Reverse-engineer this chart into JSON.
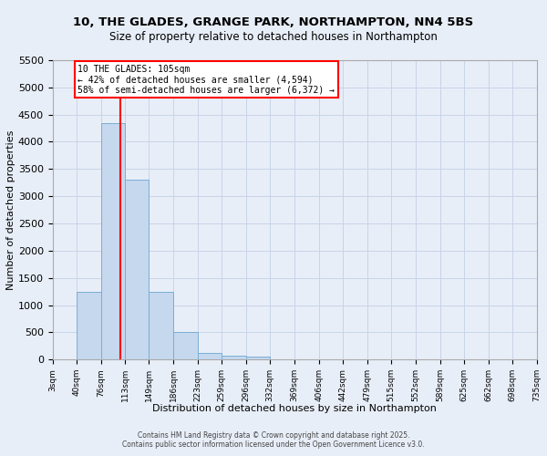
{
  "title": "10, THE GLADES, GRANGE PARK, NORTHAMPTON, NN4 5BS",
  "subtitle": "Size of property relative to detached houses in Northampton",
  "xlabel": "Distribution of detached houses by size in Northampton",
  "ylabel": "Number of detached properties",
  "bin_edges": [
    3,
    40,
    76,
    113,
    149,
    186,
    223,
    259,
    296,
    332,
    369,
    406,
    442,
    479,
    515,
    552,
    589,
    625,
    662,
    698,
    735
  ],
  "bin_labels": [
    "3sqm",
    "40sqm",
    "76sqm",
    "113sqm",
    "149sqm",
    "186sqm",
    "223sqm",
    "259sqm",
    "296sqm",
    "332sqm",
    "369sqm",
    "406sqm",
    "442sqm",
    "479sqm",
    "515sqm",
    "552sqm",
    "589sqm",
    "625sqm",
    "662sqm",
    "698sqm",
    "735sqm"
  ],
  "heights": [
    0,
    1250,
    4350,
    3300,
    1250,
    500,
    120,
    70,
    50,
    0,
    0,
    0,
    0,
    0,
    0,
    0,
    0,
    0,
    0,
    0
  ],
  "bar_color": "#c5d8ee",
  "bar_edge_color": "#7aaed4",
  "bar_linewidth": 0.7,
  "vline_x": 105,
  "vline_color": "red",
  "vline_linewidth": 1.5,
  "annotation_title": "10 THE GLADES: 105sqm",
  "annotation_line1": "← 42% of detached houses are smaller (4,594)",
  "annotation_line2": "58% of semi-detached houses are larger (6,372) →",
  "annotation_box_color": "white",
  "annotation_box_edge": "red",
  "ylim": [
    0,
    5500
  ],
  "yticks": [
    0,
    500,
    1000,
    1500,
    2000,
    2500,
    3000,
    3500,
    4000,
    4500,
    5000,
    5500
  ],
  "grid_color": "#c8d4e8",
  "background_color": "#e8eef8",
  "footer_line1": "Contains HM Land Registry data © Crown copyright and database right 2025.",
  "footer_line2": "Contains public sector information licensed under the Open Government Licence v3.0."
}
